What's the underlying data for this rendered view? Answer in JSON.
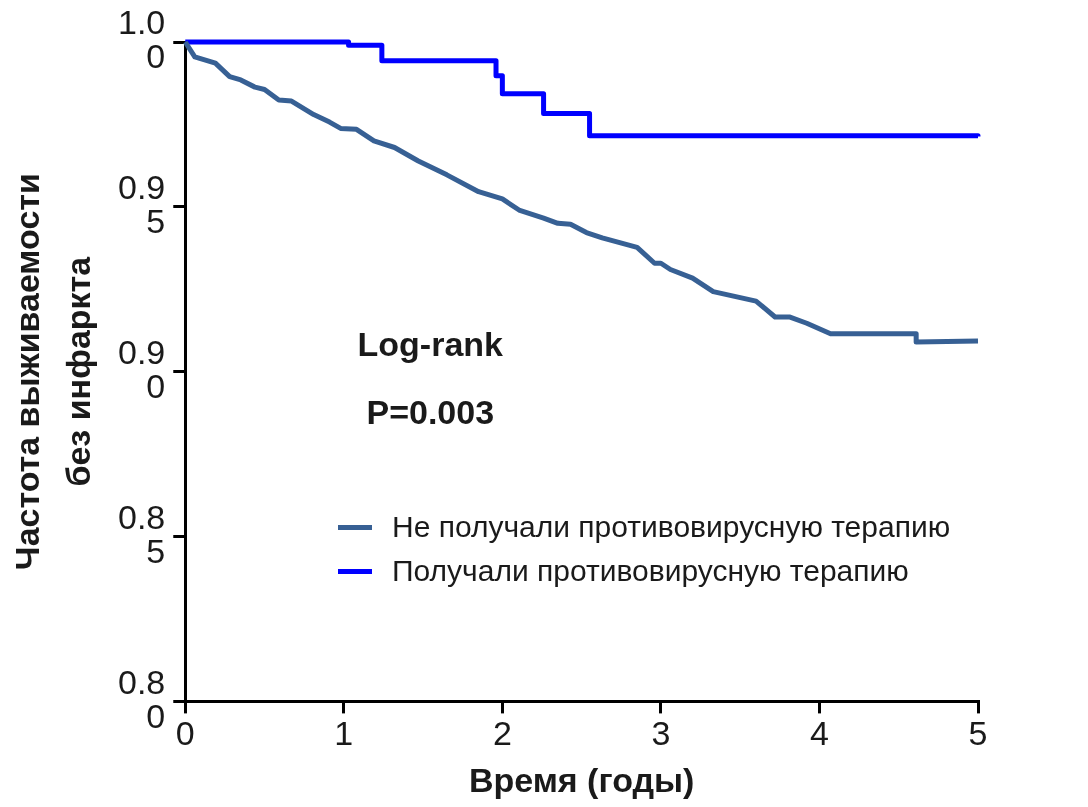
{
  "chart_data": {
    "type": "line",
    "xlabel": "Время (годы)",
    "ylabel": "Частота выживаемости без инфаркта",
    "xlim": [
      0,
      5
    ],
    "xticks": [
      0,
      1,
      2,
      3,
      4,
      5
    ],
    "ylim": [
      0.8,
      1.0
    ],
    "yticks": [
      {
        "value": 0.8,
        "label": "0.80"
      },
      0.85,
      {
        "value": 0.9,
        "label": "0.90"
      },
      0.95,
      {
        "value": 1.0,
        "label": "1.00"
      }
    ],
    "legend": "right",
    "marker": "none",
    "grid": false,
    "annotations": [
      "Log-rank",
      "P=0.003"
    ],
    "series": [
      {
        "name": "Не получали противовирусную терапию",
        "color": "#376094",
        "x": [
          0,
          0.06,
          0.19,
          0.28,
          0.35,
          0.44,
          0.5,
          0.59,
          0.67,
          0.81,
          0.91,
          0.98,
          1.08,
          1.19,
          1.32,
          1.47,
          1.65,
          1.85,
          2.0,
          2.11,
          2.26,
          2.35,
          2.43,
          2.53,
          2.63,
          2.85,
          2.96,
          3.0,
          3.06,
          3.2,
          3.33,
          3.6,
          3.72,
          3.81,
          3.92,
          4.07,
          4.61,
          4.61,
          5.0
        ],
        "values": [
          1.0,
          0.9955,
          0.9936,
          0.9895,
          0.9885,
          0.9863,
          0.9856,
          0.9824,
          0.9821,
          0.978,
          0.9757,
          0.9738,
          0.9735,
          0.97,
          0.968,
          0.9639,
          0.9597,
          0.9546,
          0.9524,
          0.9489,
          0.9466,
          0.945,
          0.9447,
          0.9422,
          0.9406,
          0.9377,
          0.9329,
          0.9329,
          0.931,
          0.9284,
          0.9243,
          0.9214,
          0.9166,
          0.9166,
          0.9147,
          0.9115,
          0.9115,
          0.909,
          0.9093
        ]
      },
      {
        "name": "Получали противовирусную терапию",
        "color": "#0000ff",
        "type": "step",
        "x": [
          0,
          1.03,
          1.24,
          1.96,
          2.0,
          2.26,
          2.55,
          5.0
        ],
        "values": [
          1.0,
          0.999,
          0.9943,
          0.9898,
          0.9843,
          0.9783,
          0.9716,
          0.9713
        ]
      }
    ]
  }
}
